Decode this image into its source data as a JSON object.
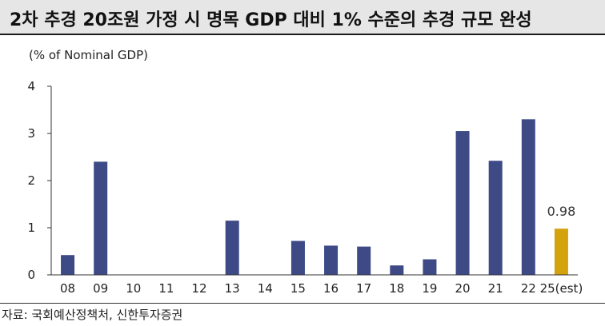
{
  "header": {
    "title": "2차 추경 20조원 가정 시 명목 GDP 대비 1% 수준의 추경 규모 완성"
  },
  "footer": {
    "source": "자료: 국회예산정책처, 신한투자증권"
  },
  "colors": {
    "bar": "#3d4a86",
    "highlight": "#d4a20c",
    "axis": "#333333"
  },
  "chart_data": {
    "type": "bar",
    "title": "",
    "ylabel": "(% of Nominal GDP)",
    "xlabel": "",
    "categories": [
      "08",
      "09",
      "10",
      "11",
      "12",
      "13",
      "14",
      "15",
      "16",
      "17",
      "18",
      "19",
      "20",
      "21",
      "22",
      "25(est)"
    ],
    "values": [
      0.42,
      2.4,
      0,
      0,
      0,
      1.15,
      0,
      0.72,
      0.62,
      0.6,
      0.2,
      0.33,
      3.05,
      2.42,
      3.3,
      0.98
    ],
    "highlight_index": 15,
    "data_labels": [
      {
        "index": 15,
        "text": "0.98"
      }
    ],
    "ylim": [
      0,
      4
    ],
    "yticks": [
      0,
      1,
      2,
      3,
      4
    ],
    "grid": false,
    "legend": "none"
  }
}
